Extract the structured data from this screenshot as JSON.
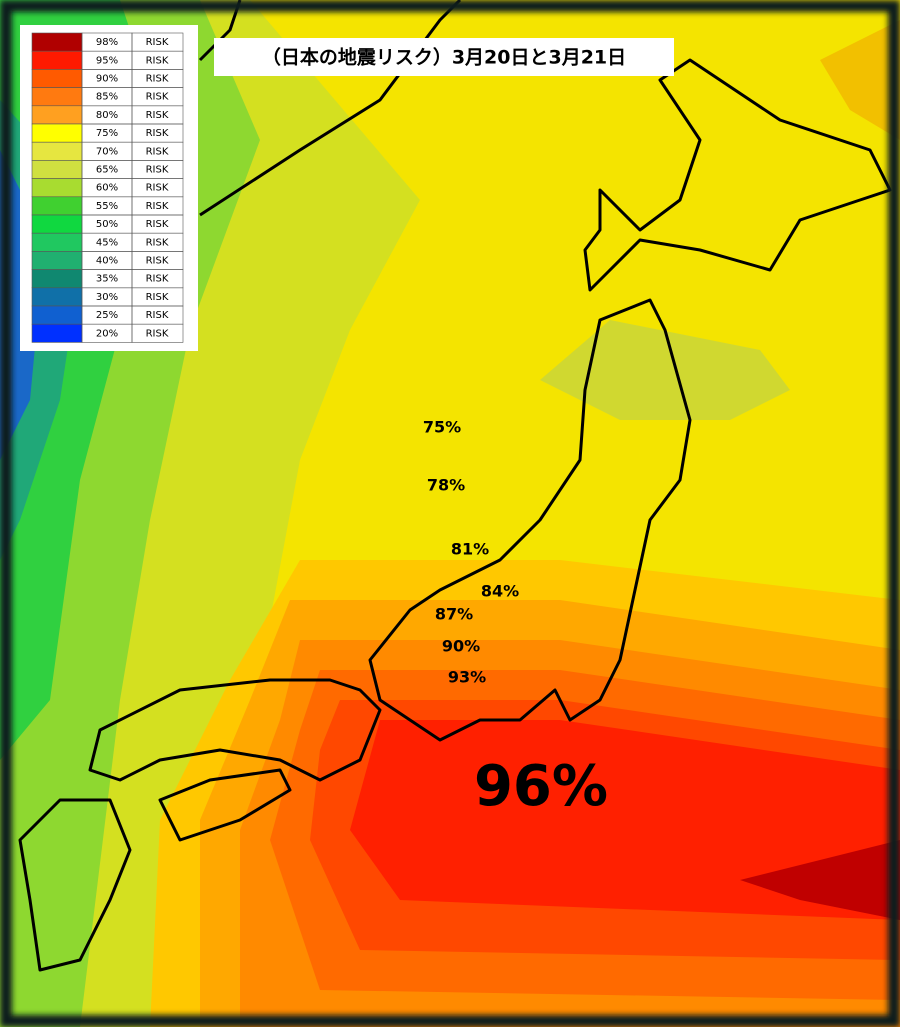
{
  "header": {
    "title": "（日本の地震リスク）3月20日と3月21日"
  },
  "legend": {
    "items": [
      {
        "label": "98%",
        "text": "RISK",
        "color": "#b00000"
      },
      {
        "label": "95%",
        "text": "RISK",
        "color": "#ff1a00"
      },
      {
        "label": "90%",
        "text": "RISK",
        "color": "#ff5a00"
      },
      {
        "label": "85%",
        "text": "RISK",
        "color": "#ff7a10"
      },
      {
        "label": "80%",
        "text": "RISK",
        "color": "#ffa020"
      },
      {
        "label": "75%",
        "text": "RISK",
        "color": "#ffff00"
      },
      {
        "label": "70%",
        "text": "RISK",
        "color": "#e6e640"
      },
      {
        "label": "65%",
        "text": "RISK",
        "color": "#d0e040"
      },
      {
        "label": "60%",
        "text": "RISK",
        "color": "#a8dc30"
      },
      {
        "label": "55%",
        "text": "RISK",
        "color": "#40d030"
      },
      {
        "label": "50%",
        "text": "RISK",
        "color": "#10d840"
      },
      {
        "label": "45%",
        "text": "RISK",
        "color": "#20c860"
      },
      {
        "label": "40%",
        "text": "RISK",
        "color": "#20b070"
      },
      {
        "label": "35%",
        "text": "RISK",
        "color": "#108870"
      },
      {
        "label": "30%",
        "text": "RISK",
        "color": "#1070a8"
      },
      {
        "label": "25%",
        "text": "RISK",
        "color": "#1060d0"
      },
      {
        "label": "20%",
        "text": "RISK",
        "color": "#0030ff"
      }
    ]
  },
  "map": {
    "labels": [
      "75%",
      "78%",
      "81%",
      "84%",
      "87%",
      "90%",
      "93%",
      "96%"
    ]
  }
}
